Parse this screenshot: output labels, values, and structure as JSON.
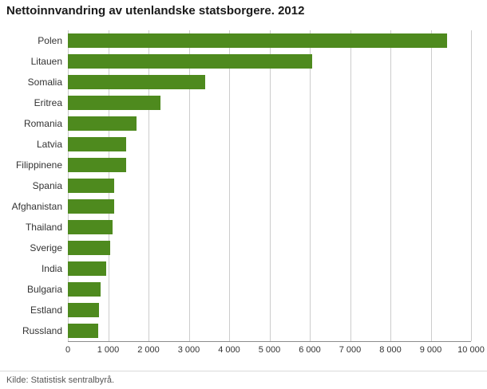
{
  "chart_data": {
    "type": "bar",
    "orientation": "horizontal",
    "title": "Nettoinnvandring av utenlandske statsborgere. 2012",
    "categories": [
      "Polen",
      "Litauen",
      "Somalia",
      "Eritrea",
      "Romania",
      "Latvia",
      "Filippinene",
      "Spania",
      "Afghanistan",
      "Thailand",
      "Sverige",
      "India",
      "Bulgaria",
      "Estland",
      "Russland"
    ],
    "values": [
      9400,
      6050,
      3400,
      2300,
      1700,
      1450,
      1450,
      1150,
      1150,
      1100,
      1050,
      950,
      820,
      780,
      760
    ],
    "xlim": [
      0,
      10000
    ],
    "x_ticks": [
      "0",
      "1 000",
      "2 000",
      "3 000",
      "4 000",
      "5 000",
      "6 000",
      "7 000",
      "8 000",
      "9 000",
      "10 000"
    ],
    "xlabel": "",
    "ylabel": "",
    "grid": "vertical",
    "legend": "none",
    "bar_color": "#4e8a1e",
    "source": "Kilde: Statistisk sentralbyrå."
  }
}
